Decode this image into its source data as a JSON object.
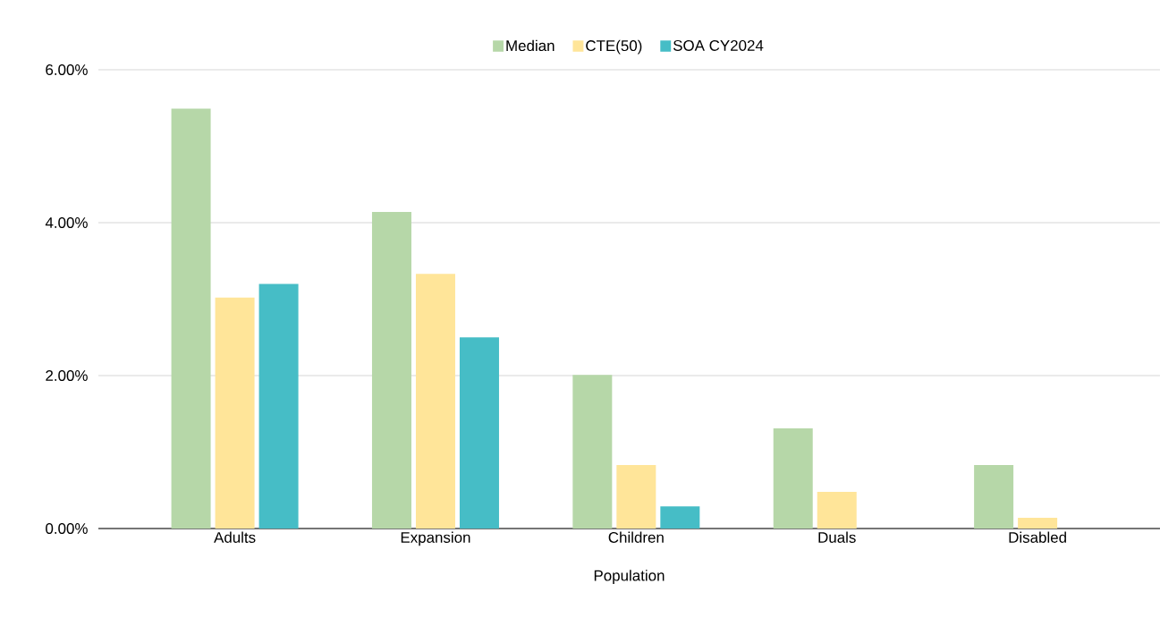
{
  "chart_data": {
    "type": "bar",
    "xlabel": "Population",
    "categories": [
      "Adults",
      "Expansion",
      "Children",
      "Duals",
      "Disabled"
    ],
    "series": [
      {
        "name": "Median",
        "color": "#b6d7a8",
        "values": [
          5.49,
          4.14,
          2.01,
          1.31,
          0.83
        ]
      },
      {
        "name": "CTE(50)",
        "color": "#ffe599",
        "values": [
          3.02,
          3.33,
          0.83,
          0.48,
          0.14
        ]
      },
      {
        "name": "SOA CY2024",
        "color": "#46bdc6",
        "values": [
          3.2,
          2.5,
          0.29,
          null,
          null
        ]
      }
    ],
    "ylim": [
      0,
      6
    ],
    "yticks": [
      {
        "value": 0,
        "label": "0.00%"
      },
      {
        "value": 2,
        "label": "2.00%"
      },
      {
        "value": 4,
        "label": "4.00%"
      },
      {
        "value": 6,
        "label": "6.00%"
      }
    ],
    "grid": "y",
    "legend": "top"
  }
}
